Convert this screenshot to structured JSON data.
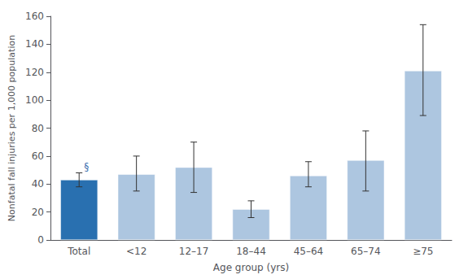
{
  "chart_data": {
    "type": "bar",
    "categories": [
      "Total",
      "<12",
      "12–17",
      "18–44",
      "45–64",
      "65–74",
      "≥75"
    ],
    "values": [
      43,
      47,
      52,
      22,
      46,
      57,
      121
    ],
    "error_lower": [
      5,
      12,
      18,
      6,
      8,
      22,
      32
    ],
    "error_upper": [
      5,
      13,
      18,
      6,
      10,
      21,
      33
    ],
    "colors": [
      "#2970b0",
      "#adc6e0",
      "#adc6e0",
      "#adc6e0",
      "#adc6e0",
      "#adc6e0",
      "#adc6e0"
    ],
    "xlabel": "Age group (yrs)",
    "ylabel": "Nonfatal fall injuries per 1,000 population",
    "annotation": "§",
    "ylim": [
      0,
      160
    ],
    "yticks": [
      0,
      20,
      40,
      60,
      80,
      100,
      120,
      140,
      160
    ],
    "grid": false
  }
}
